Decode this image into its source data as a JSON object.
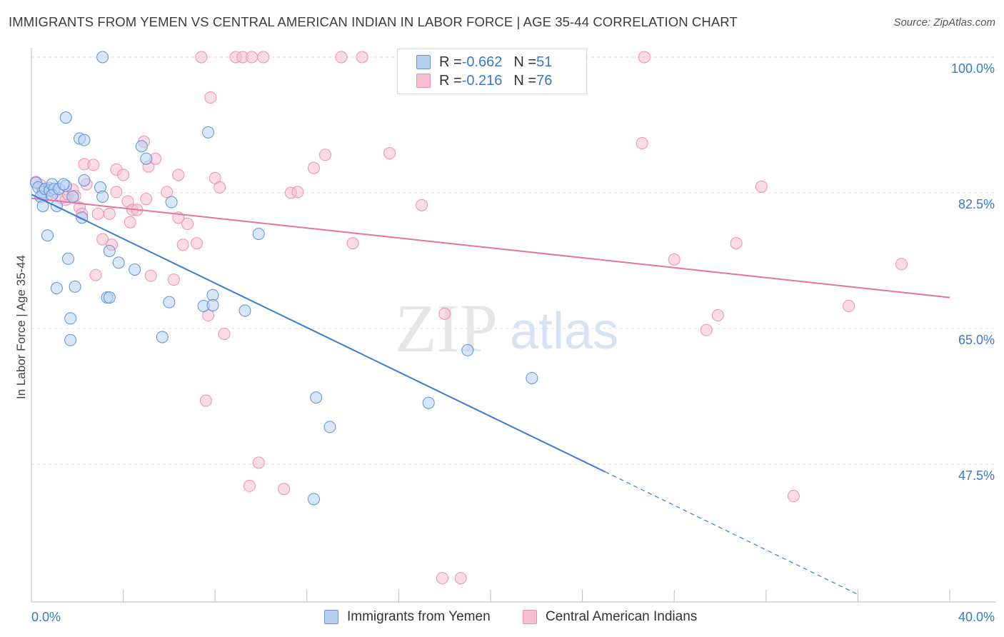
{
  "title": "IMMIGRANTS FROM YEMEN VS CENTRAL AMERICAN INDIAN IN LABOR FORCE | AGE 35-44 CORRELATION CHART",
  "source": "Source: ZipAtlas.com",
  "watermark": {
    "zip": "ZIP",
    "atlas": "atlas"
  },
  "legend": {
    "series1": {
      "r_label": "R = ",
      "r_value": "-0.662",
      "n_label": "N = ",
      "n_value": "51"
    },
    "series2": {
      "r_label": "R = ",
      "r_value": "-0.216",
      "n_label": "N = ",
      "n_value": "76"
    }
  },
  "colors": {
    "blue_fill": "#b7d1f3",
    "blue_stroke": "#5b92d9",
    "blue_line": "#3a7bd5",
    "pink_fill": "#f7c0d2",
    "pink_stroke": "#ee8eb0",
    "pink_line": "#e4739f",
    "axis_text": "#3a78c9",
    "grid": "#dddddd"
  },
  "chart_data": {
    "type": "scatter",
    "title": "IMMIGRANTS FROM YEMEN VS CENTRAL AMERICAN INDIAN IN LABOR FORCE | AGE 35-44 CORRELATION CHART",
    "xlabel": "",
    "ylabel": "In Labor Force | Age 35-44",
    "xlim": [
      0,
      40
    ],
    "ylim": [
      31,
      102
    ],
    "x_tick_labels": [
      "0.0%",
      "40.0%"
    ],
    "y_ticks": [
      47.5,
      65.0,
      82.5,
      100.0
    ],
    "y_tick_labels": [
      "47.5%",
      "65.0%",
      "82.5%",
      "100.0%"
    ],
    "grid": true,
    "legend_position": "bottom",
    "series": [
      {
        "name": "Immigrants from Yemen",
        "color": "#b7d1f3",
        "points": [
          [
            0.2,
            83.8
          ],
          [
            0.3,
            83.2
          ],
          [
            0.5,
            82.6
          ],
          [
            0.4,
            82.0
          ],
          [
            0.6,
            83.0
          ],
          [
            0.8,
            82.8
          ],
          [
            0.9,
            83.6
          ],
          [
            1.0,
            83.0
          ],
          [
            0.5,
            80.8
          ],
          [
            0.7,
            77.0
          ],
          [
            0.9,
            82.2
          ],
          [
            1.2,
            83.0
          ],
          [
            1.1,
            80.8
          ],
          [
            1.5,
            83.4
          ],
          [
            1.4,
            83.6
          ],
          [
            1.8,
            82.0
          ],
          [
            2.2,
            79.3
          ],
          [
            2.3,
            84.1
          ],
          [
            1.5,
            92.2
          ],
          [
            2.1,
            89.5
          ],
          [
            2.3,
            89.3
          ],
          [
            3.1,
            100.0
          ],
          [
            1.6,
            74.0
          ],
          [
            1.1,
            70.2
          ],
          [
            1.9,
            70.4
          ],
          [
            1.7,
            66.3
          ],
          [
            1.7,
            63.5
          ],
          [
            3.0,
            83.2
          ],
          [
            3.1,
            82.0
          ],
          [
            3.4,
            75.0
          ],
          [
            3.8,
            73.5
          ],
          [
            3.3,
            69.0
          ],
          [
            3.4,
            69.0
          ],
          [
            4.5,
            72.6
          ],
          [
            4.8,
            88.5
          ],
          [
            5.0,
            86.9
          ],
          [
            6.1,
            81.3
          ],
          [
            6.0,
            68.4
          ],
          [
            5.7,
            63.9
          ],
          [
            7.7,
            90.3
          ],
          [
            7.5,
            67.9
          ],
          [
            7.9,
            69.3
          ],
          [
            7.9,
            68.0
          ],
          [
            9.3,
            67.3
          ],
          [
            9.9,
            77.2
          ],
          [
            12.4,
            56.1
          ],
          [
            13.0,
            52.3
          ],
          [
            12.3,
            43.0
          ],
          [
            17.3,
            55.4
          ],
          [
            19.0,
            62.2
          ],
          [
            21.8,
            58.6
          ]
        ]
      },
      {
        "name": "Central American Indians",
        "color": "#f7c0d2",
        "points": [
          [
            0.2,
            83.9
          ],
          [
            0.4,
            83.5
          ],
          [
            0.6,
            82.9
          ],
          [
            0.7,
            82.2
          ],
          [
            0.8,
            83.1
          ],
          [
            1.0,
            82.5
          ],
          [
            1.3,
            81.8
          ],
          [
            1.5,
            81.6
          ],
          [
            1.6,
            82.3
          ],
          [
            1.8,
            82.9
          ],
          [
            1.9,
            82.1
          ],
          [
            2.1,
            80.6
          ],
          [
            2.2,
            79.8
          ],
          [
            2.3,
            86.2
          ],
          [
            2.4,
            83.6
          ],
          [
            2.7,
            86.1
          ],
          [
            2.8,
            71.9
          ],
          [
            2.9,
            79.8
          ],
          [
            3.1,
            76.5
          ],
          [
            3.4,
            79.8
          ],
          [
            3.5,
            75.8
          ],
          [
            3.7,
            85.5
          ],
          [
            3.7,
            82.6
          ],
          [
            4.0,
            84.8
          ],
          [
            4.2,
            81.4
          ],
          [
            4.3,
            78.7
          ],
          [
            4.4,
            80.3
          ],
          [
            4.6,
            80.3
          ],
          [
            4.9,
            89.1
          ],
          [
            5.0,
            81.7
          ],
          [
            5.1,
            85.9
          ],
          [
            5.2,
            71.8
          ],
          [
            5.4,
            86.9
          ],
          [
            5.9,
            82.6
          ],
          [
            6.2,
            71.3
          ],
          [
            6.4,
            79.3
          ],
          [
            6.4,
            84.8
          ],
          [
            6.6,
            75.8
          ],
          [
            6.8,
            78.5
          ],
          [
            7.2,
            76.0
          ],
          [
            7.4,
            100.0
          ],
          [
            7.6,
            55.7
          ],
          [
            7.7,
            66.7
          ],
          [
            7.8,
            94.8
          ],
          [
            8.0,
            84.4
          ],
          [
            8.2,
            83.2
          ],
          [
            8.4,
            64.3
          ],
          [
            8.9,
            100.0
          ],
          [
            9.2,
            100.0
          ],
          [
            9.5,
            44.7
          ],
          [
            9.6,
            100.0
          ],
          [
            9.9,
            47.7
          ],
          [
            10.1,
            100.0
          ],
          [
            11.0,
            44.3
          ],
          [
            11.3,
            82.5
          ],
          [
            11.6,
            82.6
          ],
          [
            12.3,
            85.7
          ],
          [
            12.8,
            87.4
          ],
          [
            13.5,
            100.0
          ],
          [
            14.0,
            76.0
          ],
          [
            14.4,
            100.0
          ],
          [
            15.6,
            87.6
          ],
          [
            17.0,
            80.9
          ],
          [
            17.9,
            32.8
          ],
          [
            18.0,
            66.9
          ],
          [
            18.7,
            32.8
          ],
          [
            26.7,
            100.0
          ],
          [
            26.6,
            88.9
          ],
          [
            29.4,
            64.8
          ],
          [
            29.9,
            66.7
          ],
          [
            30.7,
            76.0
          ],
          [
            31.8,
            83.3
          ],
          [
            35.6,
            67.9
          ],
          [
            37.9,
            73.3
          ],
          [
            33.2,
            43.4
          ],
          [
            28.0,
            73.9
          ]
        ]
      }
    ],
    "trend_lines": [
      {
        "series": "Immigrants from Yemen",
        "x0": 0.0,
        "y0": 82.3,
        "x1": 25.0,
        "y1": 46.5,
        "dashed_to_x": 36.0,
        "dashed_to_y": 30.7
      },
      {
        "series": "Central American Indians",
        "x0": 0.0,
        "y0": 81.8,
        "x1": 40.0,
        "y1": 69.0
      }
    ]
  }
}
